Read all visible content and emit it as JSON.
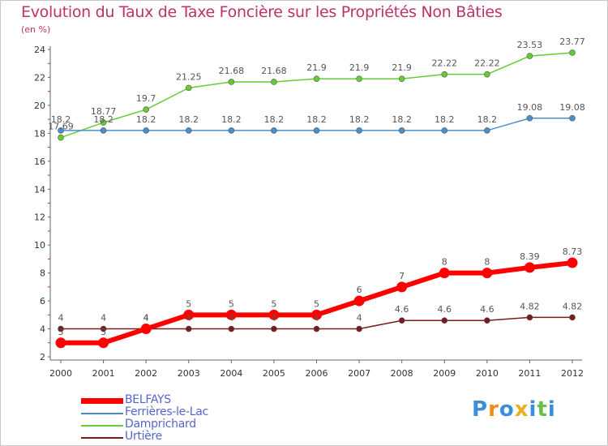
{
  "title": "Evolution du Taux de Taxe Foncière sur les Propriétés Non Bâties",
  "unit": "(en %)",
  "logo": {
    "letters": [
      "P",
      "r",
      "o",
      "x",
      "i",
      "t",
      "i"
    ],
    "colors": [
      "#3a8fd8",
      "#f08a1c",
      "#3a8fd8",
      "#e8b020",
      "#3a8fd8",
      "#6cc04a",
      "#3a8fd8"
    ]
  },
  "chart_data": {
    "type": "line",
    "x": [
      2000,
      2001,
      2002,
      2003,
      2004,
      2005,
      2006,
      2007,
      2008,
      2009,
      2010,
      2011,
      2012
    ],
    "ylim": [
      2,
      24
    ],
    "yticks": [
      2,
      4,
      6,
      8,
      10,
      12,
      14,
      16,
      18,
      20,
      22,
      24
    ],
    "grid": false,
    "legend_position": "bottom-left",
    "series": [
      {
        "name": "BELFAYS",
        "color": "#ff0000",
        "values": [
          3,
          3,
          4,
          5,
          5,
          5,
          5,
          6,
          7,
          8,
          8,
          8.39,
          8.73
        ],
        "labels": [
          "3",
          "3",
          "4",
          "5",
          "5",
          "5",
          "5",
          "6",
          "7",
          "8",
          "8",
          "8.39",
          "8.73"
        ]
      },
      {
        "name": "Ferrières-le-Lac",
        "color": "#4a8fcc",
        "values": [
          18.2,
          18.2,
          18.2,
          18.2,
          18.2,
          18.2,
          18.2,
          18.2,
          18.2,
          18.2,
          18.2,
          19.08,
          19.08
        ],
        "labels": [
          "18.2",
          "18.2",
          "18.2",
          "18.2",
          "18.2",
          "18.2",
          "18.2",
          "18.2",
          "18.2",
          "18.2",
          "18.2",
          "19.08",
          "19.08"
        ]
      },
      {
        "name": "Damprichard",
        "color": "#66cc33",
        "values": [
          17.69,
          18.77,
          19.7,
          21.25,
          21.68,
          21.68,
          21.9,
          21.9,
          21.9,
          22.22,
          22.22,
          23.53,
          23.77
        ],
        "labels": [
          "17.69",
          "18.77",
          "19.7",
          "21.25",
          "21.68",
          "21.68",
          "21.9",
          "21.9",
          "21.9",
          "22.22",
          "22.22",
          "23.53",
          "23.77"
        ]
      },
      {
        "name": "Urtière",
        "color": "#7a1a1a",
        "values": [
          4,
          4,
          4,
          4,
          4,
          4,
          4,
          4,
          4.6,
          4.6,
          4.6,
          4.82,
          4.82
        ],
        "labels": [
          "4",
          "4",
          "4",
          "4",
          "4",
          "4",
          "4",
          "4",
          "4.6",
          "4.6",
          "4.6",
          "4.82",
          "4.82"
        ]
      }
    ]
  }
}
